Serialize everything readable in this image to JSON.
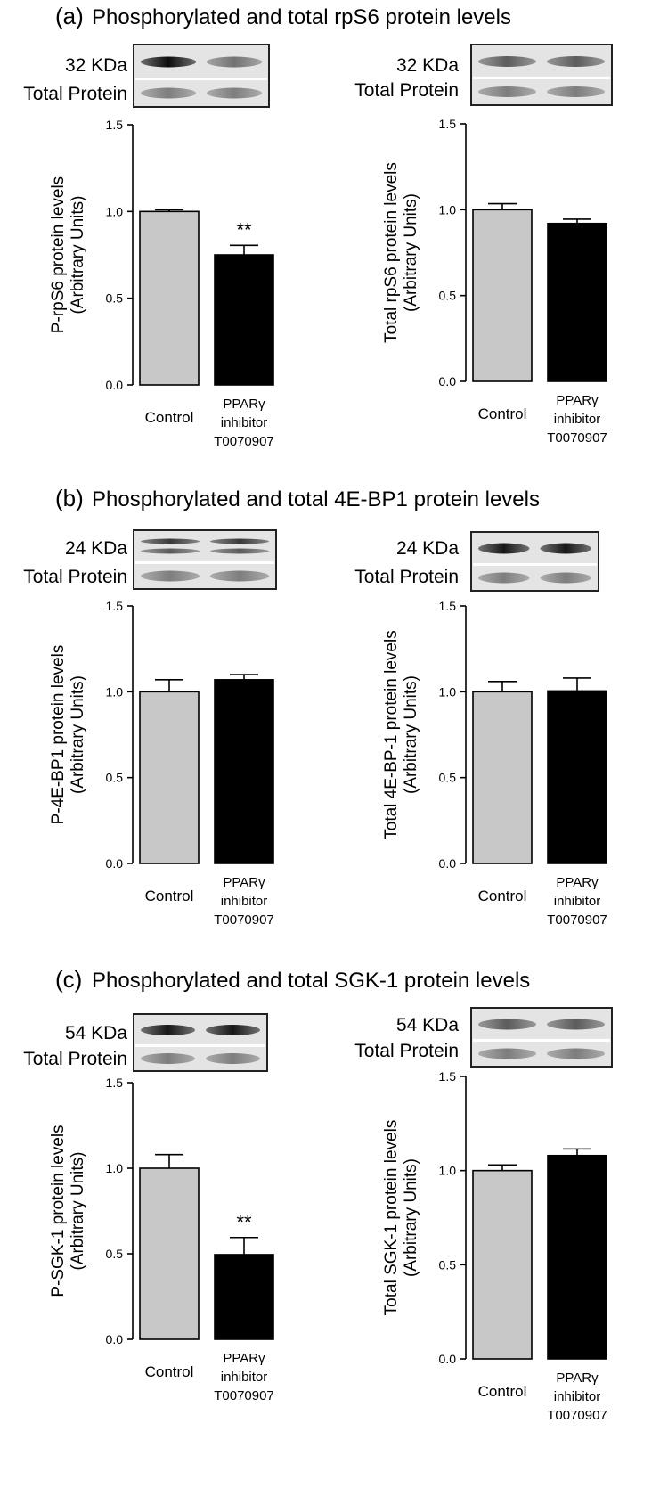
{
  "panels": [
    {
      "label": "(a)",
      "title": "Phosphorylated and total rpS6 protein levels",
      "blots": [
        {
          "kda": "32 KDa",
          "total_protein": "Total Protein",
          "band_style": "dark-weak"
        },
        {
          "kda": "32 KDa",
          "total_protein": "Total Protein",
          "band_style": "medium-equal"
        }
      ]
    },
    {
      "label": "(b)",
      "title": "Phosphorylated and total 4E-BP1 protein levels",
      "blots": [
        {
          "kda": "24 KDa",
          "total_protein": "Total Protein",
          "band_style": "double"
        },
        {
          "kda": "24 KDa",
          "total_protein": "Total Protein",
          "band_style": "dark-equal"
        }
      ]
    },
    {
      "label": "(c)",
      "title": "Phosphorylated and total SGK-1 protein levels",
      "blots": [
        {
          "kda": "54 KDa",
          "total_protein": "Total Protein",
          "band_style": "dark-equal"
        },
        {
          "kda": "54 KDa",
          "total_protein": "Total Protein",
          "band_style": "medium-equal"
        }
      ]
    }
  ],
  "colors": {
    "control_bar": "#c8c8c8",
    "treatment_bar": "#000000",
    "axis": "#000000",
    "text": "#000000"
  },
  "chart_data": [
    {
      "type": "bar",
      "title": "",
      "ylabel": [
        "P-rpS6 protein levels",
        "(Arbitrary Units)"
      ],
      "categories": [
        [
          "Control"
        ],
        [
          "PPARγ",
          "inhibitor",
          "T0070907"
        ]
      ],
      "values": [
        1.0,
        0.75
      ],
      "errors": [
        0.01,
        0.055
      ],
      "significance": [
        "",
        "**"
      ],
      "ylim": [
        0,
        1.5
      ],
      "yticks": [
        "0.0",
        "0.5",
        "1.0",
        "1.5"
      ]
    },
    {
      "type": "bar",
      "title": "",
      "ylabel": [
        "Total rpS6 protein levels",
        "(Arbitrary Units)"
      ],
      "categories": [
        [
          "Control"
        ],
        [
          "PPARγ",
          "inhibitor",
          "T0070907"
        ]
      ],
      "values": [
        1.0,
        0.92
      ],
      "errors": [
        0.035,
        0.025
      ],
      "significance": [
        "",
        ""
      ],
      "ylim": [
        0,
        1.5
      ],
      "yticks": [
        "0.0",
        "0.5",
        "1.0",
        "1.5"
      ]
    },
    {
      "type": "bar",
      "title": "",
      "ylabel": [
        "P-4E-BP1 protein levels",
        "(Arbitrary Units)"
      ],
      "categories": [
        [
          "Control"
        ],
        [
          "PPARγ",
          "inhibitor",
          "T0070907"
        ]
      ],
      "values": [
        1.0,
        1.07
      ],
      "errors": [
        0.07,
        0.03
      ],
      "significance": [
        "",
        ""
      ],
      "ylim": [
        0,
        1.5
      ],
      "yticks": [
        "0.0",
        "0.5",
        "1.0",
        "1.5"
      ]
    },
    {
      "type": "bar",
      "title": "",
      "ylabel": [
        "Total 4E-BP-1 protein levels",
        "(Arbitrary Units)"
      ],
      "categories": [
        [
          "Control"
        ],
        [
          "PPARγ",
          "inhibitor",
          "T0070907"
        ]
      ],
      "values": [
        1.0,
        1.005
      ],
      "errors": [
        0.06,
        0.075
      ],
      "significance": [
        "",
        ""
      ],
      "ylim": [
        0,
        1.5
      ],
      "yticks": [
        "0.0",
        "0.5",
        "1.0",
        "1.5"
      ]
    },
    {
      "type": "bar",
      "title": "",
      "ylabel": [
        "P-SGK-1 protein levels",
        "(Arbitrary Units)"
      ],
      "categories": [
        [
          "Control"
        ],
        [
          "PPARγ",
          "inhibitor",
          "T0070907"
        ]
      ],
      "values": [
        1.0,
        0.495
      ],
      "errors": [
        0.08,
        0.1
      ],
      "significance": [
        "",
        "**"
      ],
      "ylim": [
        0,
        1.5
      ],
      "yticks": [
        "0.0",
        "0.5",
        "1.0",
        "1.5"
      ]
    },
    {
      "type": "bar",
      "title": "",
      "ylabel": [
        "Total SGK-1 protein levels",
        "(Arbitrary Units)"
      ],
      "categories": [
        [
          "Control"
        ],
        [
          "PPARγ",
          "inhibitor",
          "T0070907"
        ]
      ],
      "values": [
        1.0,
        1.08
      ],
      "errors": [
        0.03,
        0.035
      ],
      "significance": [
        "",
        ""
      ],
      "ylim": [
        0,
        1.5
      ],
      "yticks": [
        "0.0",
        "0.5",
        "1.0",
        "1.5"
      ]
    }
  ]
}
